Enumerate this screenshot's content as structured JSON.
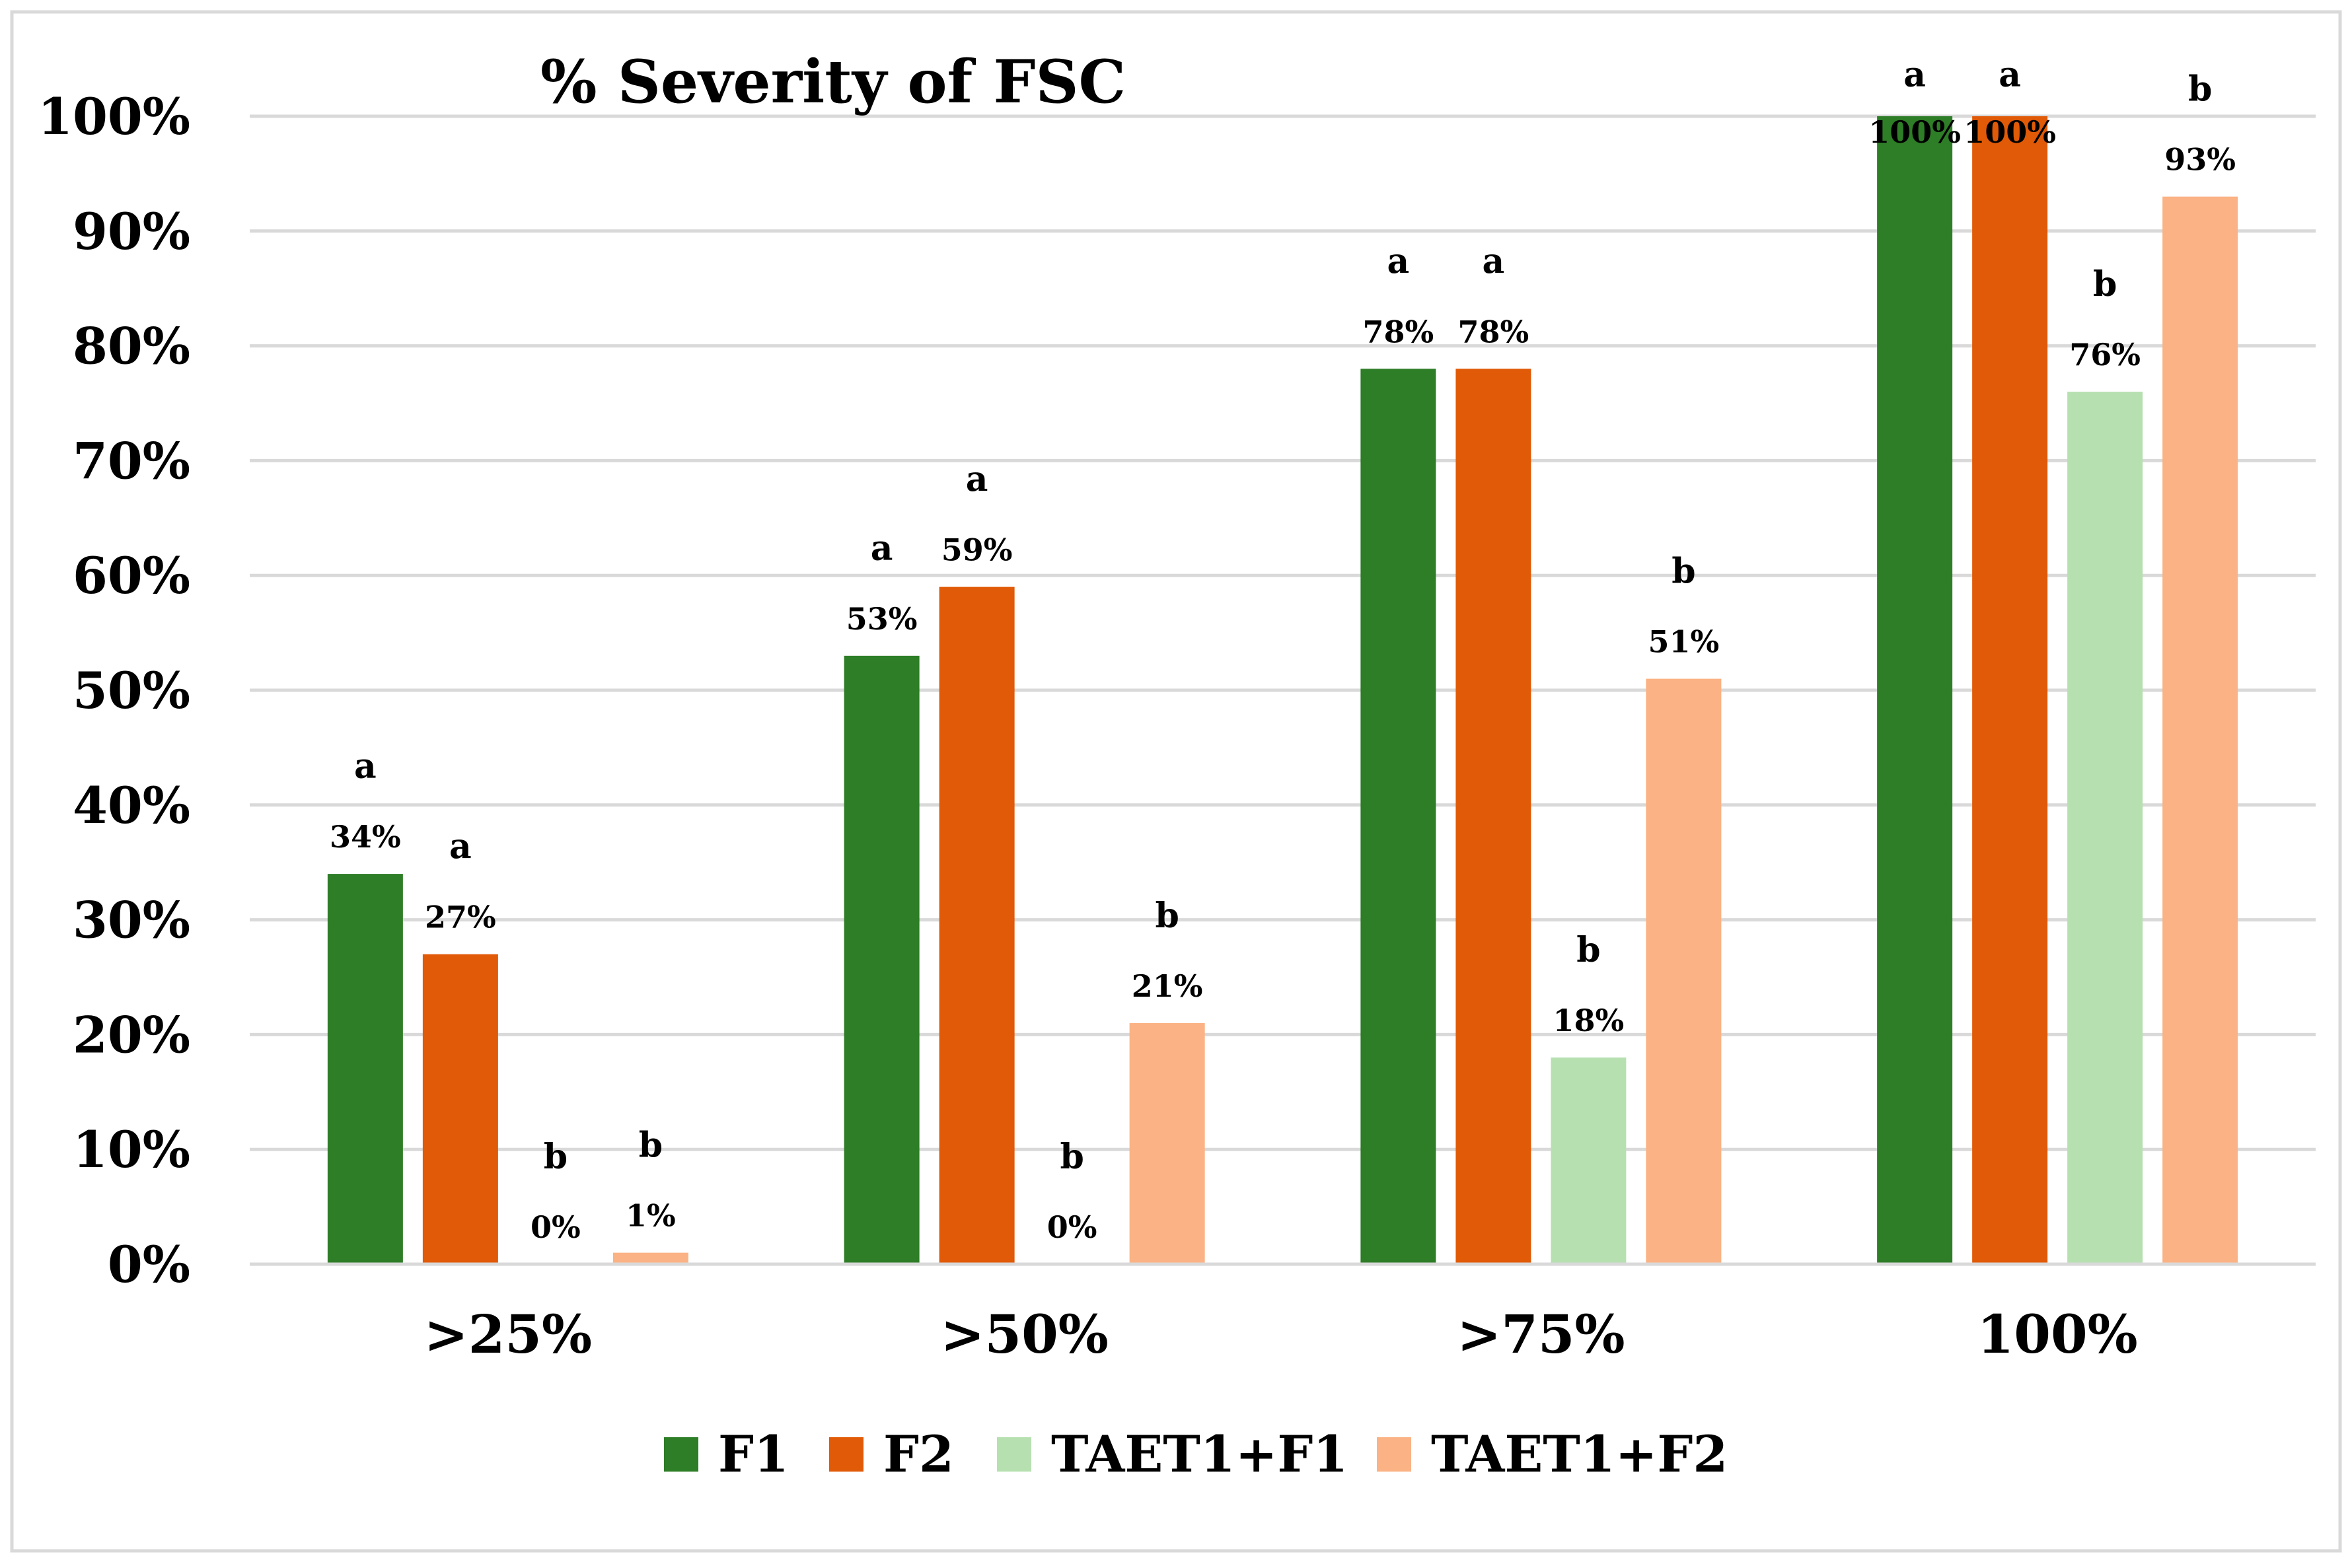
{
  "chart_data": {
    "type": "bar",
    "title": "% Severity of FSC",
    "xlabel": "",
    "ylabel": "",
    "ylim": [
      0,
      100
    ],
    "yticks": [
      "0%",
      "10%",
      "20%",
      "30%",
      "40%",
      "50%",
      "60%",
      "70%",
      "80%",
      "90%",
      "100%"
    ],
    "ytick_values": [
      0,
      10,
      20,
      30,
      40,
      50,
      60,
      70,
      80,
      90,
      100
    ],
    "grid": true,
    "legend_position": "bottom",
    "categories": [
      ">25%",
      ">50%",
      ">75%",
      "100%"
    ],
    "series": [
      {
        "name": "F1",
        "color": "#2e7d27",
        "values": [
          34,
          53,
          78,
          100
        ],
        "labels": [
          "34%",
          "53%",
          "78%",
          "100%"
        ],
        "letters": [
          "a",
          "a",
          "a",
          "a"
        ]
      },
      {
        "name": "F2",
        "color": "#e05a07",
        "values": [
          27,
          59,
          78,
          100
        ],
        "labels": [
          "27%",
          "59%",
          "78%",
          "100%"
        ],
        "letters": [
          "a",
          "a",
          "a",
          "a"
        ]
      },
      {
        "name": "TAET1+F1",
        "color": "#b7e0b1",
        "values": [
          0,
          0,
          18,
          76
        ],
        "labels": [
          "0%",
          "0%",
          "18%",
          "76%"
        ],
        "letters": [
          "b",
          "b",
          "b",
          "b"
        ]
      },
      {
        "name": "TAET1+F2",
        "color": "#fbb284",
        "values": [
          1,
          21,
          51,
          93
        ],
        "labels": [
          "1%",
          "21%",
          "51%",
          "93%"
        ],
        "letters": [
          "b",
          "b",
          "b",
          "b"
        ]
      }
    ]
  }
}
